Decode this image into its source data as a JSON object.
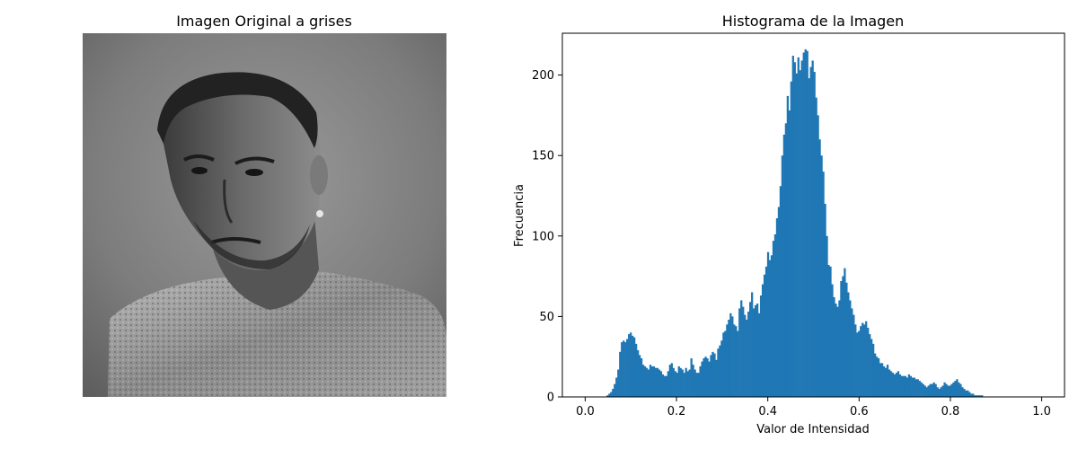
{
  "left_panel": {
    "title": "Imagen Original a grises"
  },
  "chart_data": {
    "type": "bar",
    "title": "Histograma de la Imagen",
    "xlabel": "Valor de Intensidad",
    "ylabel": "Frecuencia",
    "xlim": [
      -0.05,
      1.05
    ],
    "ylim": [
      0,
      226
    ],
    "xticks": [
      "0.0",
      "0.2",
      "0.4",
      "0.6",
      "0.8",
      "1.0"
    ],
    "yticks": [
      "0",
      "50",
      "100",
      "150",
      "200"
    ],
    "bar_color": "#1f77b4",
    "grid": false,
    "bins": {
      "start": 0.0,
      "width": 0.00390625,
      "values": [
        0,
        0,
        0,
        0,
        0,
        0,
        0,
        0,
        0,
        0,
        0,
        0,
        1,
        2,
        3,
        5,
        8,
        12,
        17,
        28,
        34,
        35,
        34,
        36,
        39,
        40,
        38,
        37,
        33,
        29,
        26,
        24,
        20,
        19,
        18,
        17,
        20,
        19,
        19,
        18,
        18,
        17,
        16,
        14,
        13,
        13,
        16,
        20,
        21,
        18,
        16,
        15,
        19,
        18,
        17,
        15,
        18,
        16,
        17,
        24,
        20,
        17,
        15,
        15,
        19,
        22,
        24,
        25,
        24,
        22,
        26,
        28,
        27,
        23,
        30,
        32,
        35,
        40,
        41,
        45,
        48,
        52,
        50,
        45,
        44,
        41,
        55,
        60,
        56,
        51,
        48,
        53,
        59,
        65,
        55,
        57,
        58,
        52,
        63,
        70,
        76,
        81,
        90,
        85,
        88,
        97,
        101,
        111,
        118,
        131,
        150,
        163,
        170,
        187,
        178,
        196,
        212,
        208,
        201,
        211,
        203,
        209,
        214,
        216,
        215,
        198,
        205,
        209,
        202,
        186,
        175,
        160,
        150,
        140,
        120,
        100,
        82,
        81,
        70,
        62,
        58,
        56,
        60,
        72,
        75,
        80,
        71,
        65,
        60,
        55,
        51,
        45,
        40,
        41,
        44,
        46,
        45,
        47,
        43,
        39,
        36,
        33,
        27,
        25,
        24,
        21,
        21,
        19,
        18,
        20,
        17,
        16,
        15,
        14,
        15,
        16,
        14,
        13,
        13,
        13,
        12,
        14,
        13,
        12,
        12,
        11,
        11,
        10,
        9,
        8,
        7,
        6,
        7,
        8,
        8,
        9,
        8,
        6,
        5,
        6,
        7,
        9,
        8,
        7,
        7,
        8,
        9,
        10,
        11,
        9,
        8,
        6,
        5,
        4,
        4,
        3,
        2,
        2,
        1,
        1,
        1,
        1,
        1,
        0,
        0,
        0,
        0,
        0,
        0,
        0,
        0,
        0,
        0,
        0,
        0,
        0,
        0,
        0,
        0,
        0,
        0,
        0,
        0,
        0,
        0
      ]
    }
  }
}
